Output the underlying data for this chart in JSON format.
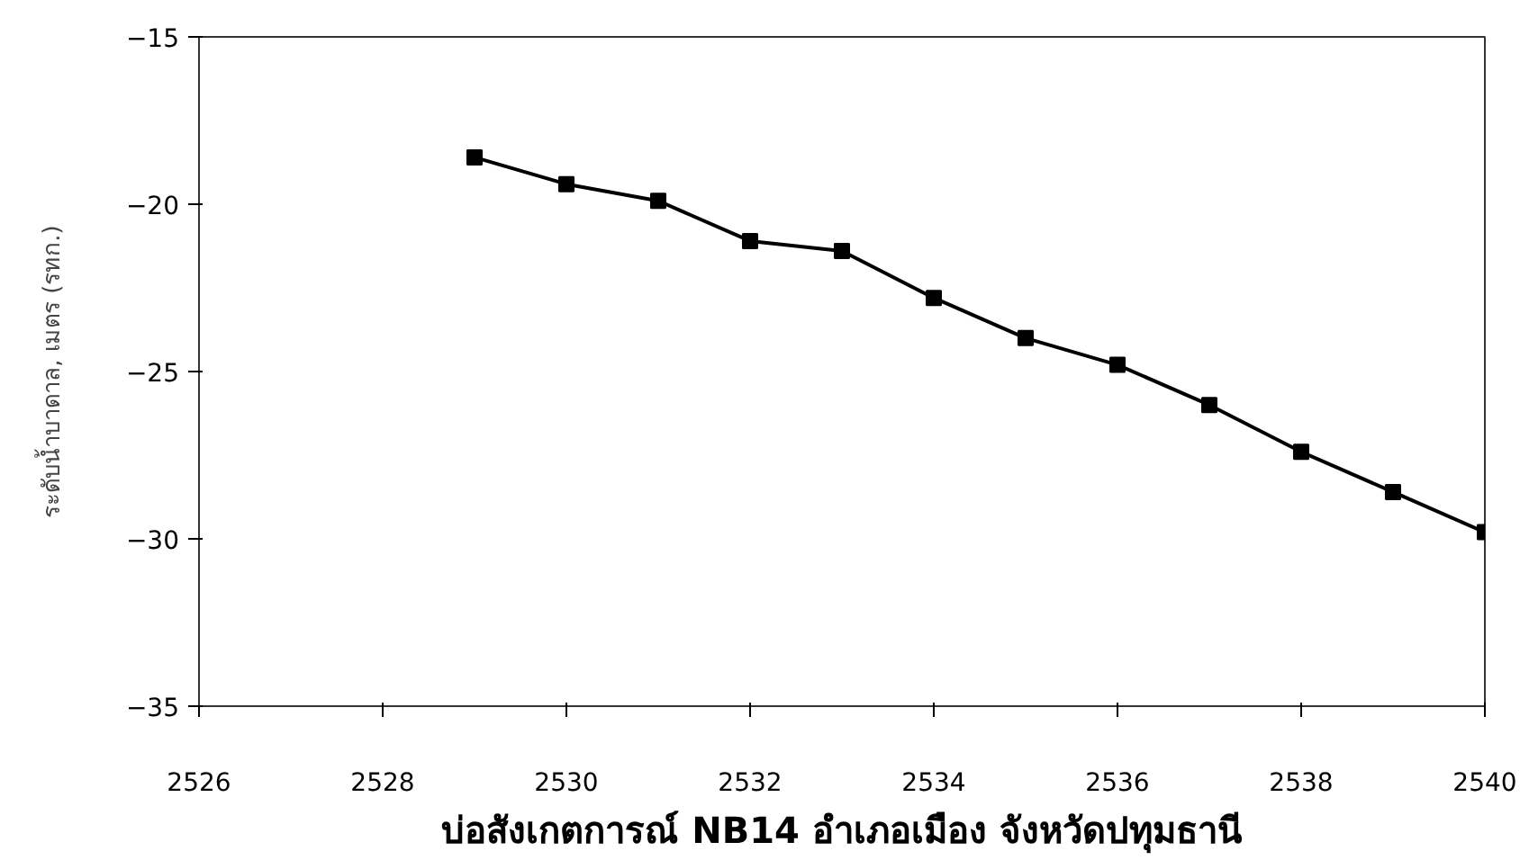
{
  "chart_data": {
    "type": "line",
    "title": "บ่อสังเกตการณ์ NB14 อำเภอเมือง จังหวัดปทุมธานี",
    "ylabel": "ระดับน้ำบาดาล, เมตร (รทก.)",
    "x": [
      2529,
      2530,
      2531,
      2532,
      2533,
      2534,
      2535,
      2536,
      2537,
      2538,
      2539,
      2540
    ],
    "series": [
      {
        "color": "#000000",
        "values": [
          -18.6,
          -19.4,
          -19.9,
          -21.1,
          -21.4,
          -22.8,
          -24.0,
          -24.8,
          -26.0,
          -27.4,
          -28.6,
          -29.8
        ]
      }
    ],
    "xlim": [
      2526,
      2540
    ],
    "xticks": [
      2526,
      2528,
      2530,
      2532,
      2534,
      2536,
      2538,
      2540
    ],
    "ylim": [
      -35,
      -15
    ],
    "yticks": [
      -35,
      -30,
      -25,
      -20,
      -15
    ],
    "grid": false,
    "marker": "square",
    "line_style": "solid"
  }
}
